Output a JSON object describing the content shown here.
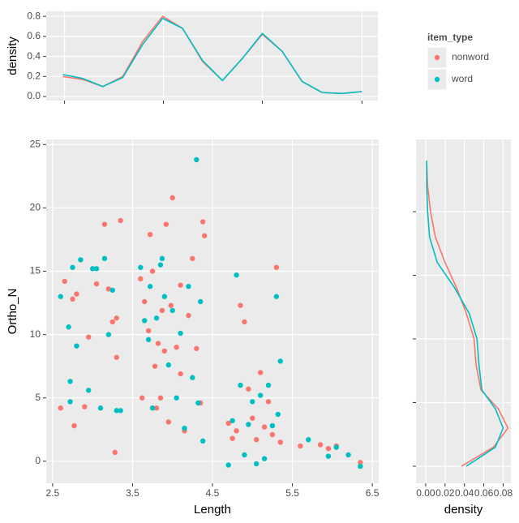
{
  "chart_data": [
    {
      "type": "line",
      "ylabel": "density",
      "x": [
        2.6,
        2.85,
        3.1,
        3.35,
        3.6,
        3.85,
        4.1,
        4.35,
        4.6,
        4.85,
        5.1,
        5.35,
        5.6,
        5.85,
        6.1,
        6.35
      ],
      "series": [
        {
          "name": "nonword",
          "color": "#F8766D",
          "values": [
            0.2,
            0.17,
            0.1,
            0.2,
            0.55,
            0.8,
            0.68,
            0.35,
            0.16,
            0.38,
            0.62,
            0.45,
            0.15,
            0.04,
            0.03,
            0.05
          ]
        },
        {
          "name": "word",
          "color": "#00BFC4",
          "values": [
            0.22,
            0.18,
            0.1,
            0.19,
            0.52,
            0.78,
            0.68,
            0.36,
            0.16,
            0.38,
            0.63,
            0.45,
            0.15,
            0.04,
            0.03,
            0.05
          ]
        }
      ],
      "xlim": [
        2.39,
        6.55
      ],
      "xticks": [
        2.62,
        3.86,
        5.1,
        6.35
      ],
      "ylim": [
        -0.04,
        0.85
      ],
      "yticks": [
        {
          "value": 0,
          "label": "0.0"
        },
        {
          "value": 0.2,
          "label": "0.2"
        },
        {
          "value": 0.4,
          "label": "0.4"
        },
        {
          "value": 0.6,
          "label": "0.6"
        },
        {
          "value": 0.8,
          "label": "0.8"
        }
      ],
      "grid": true
    },
    {
      "type": "scatter",
      "xlabel": "Length",
      "ylabel": "Ortho_N",
      "legend_title": "item_type",
      "legend": "right",
      "series": [
        {
          "name": "nonword",
          "color": "#F8766D",
          "x": [
            2.6,
            2.65,
            2.75,
            2.77,
            2.8,
            2.9,
            2.95,
            3.05,
            3.15,
            3.2,
            3.25,
            3.28,
            3.3,
            3.35,
            3.3,
            3.6,
            3.62,
            3.65,
            3.7,
            3.72,
            3.75,
            3.78,
            3.8,
            3.82,
            3.85,
            3.87,
            3.9,
            3.92,
            3.95,
            3.98,
            4.0,
            4.05,
            4.1,
            4.1,
            4.15,
            4.2,
            4.25,
            4.3,
            4.35,
            4.38,
            4.4,
            4.7,
            4.75,
            4.8,
            4.85,
            4.9,
            4.95,
            5.0,
            5.05,
            5.1,
            5.15,
            5.2,
            5.25,
            5.3,
            5.35,
            5.6,
            5.85,
            5.95,
            6.05,
            6.35
          ],
          "values": [
            4.2,
            14.2,
            12.8,
            2.8,
            13.2,
            4.3,
            9.8,
            14.0,
            18.7,
            13.6,
            11.0,
            0.7,
            8.2,
            19.0,
            11.3,
            14.4,
            5.0,
            12.6,
            10.3,
            17.9,
            15.0,
            7.5,
            4.2,
            9.3,
            5.0,
            11.9,
            8.7,
            18.7,
            3.1,
            12.3,
            20.8,
            9.0,
            6.9,
            13.9,
            2.4,
            11.5,
            16.0,
            8.9,
            4.6,
            18.9,
            17.8,
            3.0,
            1.8,
            2.4,
            12.3,
            11.0,
            5.7,
            3.4,
            1.7,
            7.0,
            2.7,
            4.7,
            2.1,
            15.3,
            1.5,
            1.2,
            1.3,
            1.0,
            1.2,
            -0.1
          ]
        },
        {
          "name": "word",
          "color": "#00BFC4",
          "x": [
            2.6,
            2.7,
            2.72,
            2.72,
            2.75,
            2.8,
            2.85,
            2.95,
            3.0,
            3.05,
            3.1,
            3.15,
            3.2,
            3.25,
            3.3,
            3.35,
            3.6,
            3.65,
            3.7,
            3.72,
            3.75,
            3.8,
            3.85,
            3.87,
            3.9,
            3.95,
            4.0,
            4.05,
            4.1,
            4.15,
            4.2,
            4.25,
            4.3,
            4.32,
            4.35,
            4.38,
            4.7,
            4.75,
            4.8,
            4.85,
            4.9,
            4.95,
            5.0,
            5.05,
            5.1,
            5.15,
            5.2,
            5.25,
            5.3,
            5.32,
            5.35,
            5.7,
            5.95,
            6.05,
            6.2,
            6.35
          ],
          "values": [
            13.0,
            10.6,
            4.7,
            6.3,
            15.3,
            9.1,
            15.9,
            5.6,
            15.2,
            15.2,
            4.2,
            16.0,
            10.0,
            13.5,
            4.0,
            4.0,
            15.3,
            11.1,
            9.6,
            13.8,
            4.2,
            11.3,
            15.5,
            16.0,
            13.0,
            7.6,
            11.9,
            5.0,
            10.1,
            2.6,
            13.8,
            6.6,
            23.8,
            4.6,
            12.6,
            1.6,
            -0.3,
            3.2,
            14.7,
            6.0,
            0.5,
            2.9,
            4.7,
            -0.2,
            5.2,
            0.2,
            6.0,
            2.8,
            13.0,
            3.7,
            7.9,
            1.7,
            0.4,
            1.1,
            0.5,
            -0.4
          ]
        }
      ],
      "xlim": [
        2.42,
        6.58
      ],
      "xticks": [
        2.5,
        3.5,
        4.5,
        5.5,
        6.5
      ],
      "ylim": [
        -1.74,
        25.4
      ],
      "yticks": [
        0,
        5,
        10,
        15,
        20,
        25
      ],
      "grid": true
    },
    {
      "type": "line",
      "orientation": "vertical",
      "xlabel": "density",
      "y": [
        0,
        1.5,
        3,
        4.5,
        6,
        8,
        10,
        12,
        14,
        16,
        18,
        20,
        22,
        24
      ],
      "series": [
        {
          "name": "nonword",
          "color": "#F8766D",
          "values": [
            0.037,
            0.07,
            0.085,
            0.075,
            0.057,
            0.052,
            0.05,
            0.042,
            0.032,
            0.02,
            0.01,
            0.005,
            0.002,
            0.001
          ]
        },
        {
          "name": "word",
          "color": "#00BFC4",
          "values": [
            0.042,
            0.072,
            0.08,
            0.072,
            0.058,
            0.055,
            0.053,
            0.045,
            0.03,
            0.012,
            0.004,
            0.002,
            0.001,
            0.001
          ]
        }
      ],
      "xlim": [
        -0.01,
        0.088
      ],
      "xticks": [
        {
          "value": 0,
          "label": "0.00"
        },
        {
          "value": 0.02,
          "label": "0.02"
        },
        {
          "value": 0.04,
          "label": "0.04"
        },
        {
          "value": 0.06,
          "label": "0.06"
        },
        {
          "value": 0.08,
          "label": "0.08"
        }
      ],
      "ylim": [
        -1.34,
        25.67
      ],
      "yticks": [
        0,
        5,
        10,
        15,
        20
      ],
      "grid": true
    }
  ]
}
